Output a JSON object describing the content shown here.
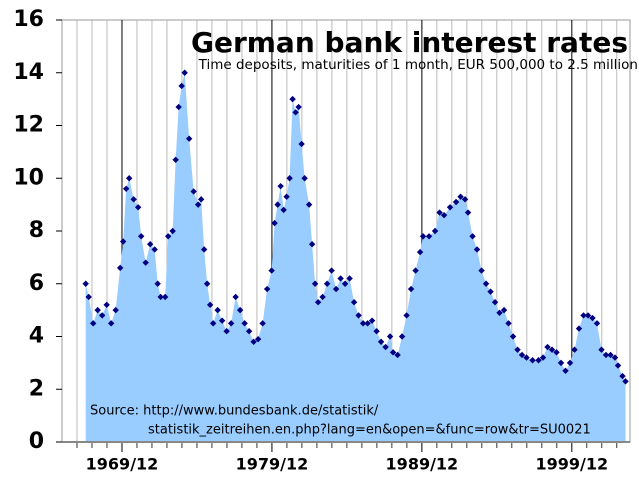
{
  "chart_data": {
    "type": "area",
    "title": "German bank interest rates",
    "subtitle": "Time deposits, maturities of 1 month, EUR 500,000 to 2.5 million",
    "source_line1": "Source: http://www.bundesbank.de/statistik/",
    "source_line2": "statistik_zeitreihen.en.php?lang=en&open=&func=row&tr=SU0021",
    "x": [
      1967.5,
      1967.7,
      1968.0,
      1968.3,
      1968.6,
      1968.9,
      1969.2,
      1969.5,
      1969.8,
      1970.0,
      1970.2,
      1970.4,
      1970.7,
      1971.0,
      1971.2,
      1971.5,
      1971.8,
      1972.1,
      1972.3,
      1972.5,
      1972.8,
      1973.0,
      1973.3,
      1973.5,
      1973.7,
      1973.9,
      1974.1,
      1974.4,
      1974.7,
      1975.0,
      1975.2,
      1975.4,
      1975.6,
      1975.8,
      1976.0,
      1976.3,
      1976.6,
      1976.9,
      1977.2,
      1977.5,
      1977.8,
      1978.1,
      1978.4,
      1978.7,
      1979.0,
      1979.3,
      1979.6,
      1979.9,
      1980.1,
      1980.3,
      1980.5,
      1980.7,
      1980.9,
      1981.1,
      1981.3,
      1981.5,
      1981.7,
      1981.9,
      1982.1,
      1982.4,
      1982.6,
      1982.8,
      1983.0,
      1983.3,
      1983.6,
      1983.9,
      1984.2,
      1984.5,
      1984.8,
      1985.1,
      1985.4,
      1985.7,
      1986.0,
      1986.3,
      1986.6,
      1986.9,
      1987.2,
      1987.5,
      1987.8,
      1988.0,
      1988.3,
      1988.6,
      1988.9,
      1989.2,
      1989.5,
      1989.8,
      1990.0,
      1990.4,
      1990.8,
      1991.1,
      1991.4,
      1991.8,
      1992.2,
      1992.5,
      1992.8,
      1993.0,
      1993.3,
      1993.6,
      1993.9,
      1994.2,
      1994.5,
      1994.8,
      1995.1,
      1995.4,
      1995.7,
      1996.0,
      1996.3,
      1996.6,
      1996.9,
      1997.3,
      1997.7,
      1998.0,
      1998.3,
      1998.6,
      1998.9,
      1999.2,
      1999.5,
      1999.8,
      2000.1,
      2000.4,
      2000.7,
      2001.0,
      2001.3,
      2001.6,
      2001.9,
      2002.2,
      2002.5,
      2002.8,
      2003.0,
      2003.3,
      2003.5
    ],
    "series": [
      {
        "name": "Time deposits 1 month",
        "color": "#99ccff",
        "marker_color": "#000080",
        "values": [
          6.0,
          5.5,
          4.5,
          5.0,
          4.8,
          5.2,
          4.5,
          5.0,
          6.6,
          7.6,
          9.6,
          10.0,
          9.2,
          8.9,
          7.8,
          6.8,
          7.5,
          7.3,
          6.0,
          5.5,
          5.5,
          7.8,
          8.0,
          10.7,
          12.7,
          13.5,
          14.0,
          11.5,
          9.5,
          9.0,
          9.2,
          7.3,
          6.0,
          5.2,
          4.5,
          5.0,
          4.6,
          4.2,
          4.5,
          5.5,
          5.0,
          4.5,
          4.2,
          3.8,
          3.9,
          4.5,
          5.8,
          6.5,
          8.3,
          9.0,
          9.7,
          8.8,
          9.3,
          10.0,
          13.0,
          12.5,
          12.7,
          11.3,
          10.0,
          9.0,
          7.5,
          6.0,
          5.3,
          5.5,
          6.0,
          6.5,
          5.8,
          6.2,
          6.0,
          6.2,
          5.3,
          4.8,
          4.5,
          4.5,
          4.6,
          4.2,
          3.8,
          3.6,
          4.0,
          3.4,
          3.3,
          4.0,
          4.8,
          5.8,
          6.5,
          7.2,
          7.8,
          7.8,
          8.0,
          8.7,
          8.6,
          8.9,
          9.1,
          9.3,
          9.2,
          8.7,
          7.8,
          7.3,
          6.5,
          6.0,
          5.7,
          5.3,
          4.9,
          5.0,
          4.5,
          4.0,
          3.5,
          3.3,
          3.2,
          3.1,
          3.1,
          3.2,
          3.6,
          3.5,
          3.4,
          3.0,
          2.7,
          3.0,
          3.5,
          4.3,
          4.8,
          4.8,
          4.7,
          4.5,
          3.5,
          3.3,
          3.3,
          3.2,
          2.9,
          2.5,
          2.3
        ]
      }
    ],
    "xlim": [
      1965.92,
      2003.8
    ],
    "xticks": [
      {
        "value": 1969.92,
        "label": "1969/12"
      },
      {
        "value": 1979.92,
        "label": "1979/12"
      },
      {
        "value": 1989.92,
        "label": "1989/12"
      },
      {
        "value": 1999.92,
        "label": "1999/12"
      }
    ],
    "minor_xticks": [
      1966.92,
      1967.92,
      1968.92,
      1970.92,
      1971.92,
      1972.92,
      1973.92,
      1974.92,
      1975.92,
      1976.92,
      1977.92,
      1978.92,
      1980.92,
      1981.92,
      1982.92,
      1983.92,
      1984.92,
      1985.92,
      1986.92,
      1987.92,
      1988.92,
      1990.92,
      1991.92,
      1992.92,
      1993.92,
      1994.92,
      1995.92,
      1996.92,
      1997.92,
      1998.92,
      2000.92,
      2001.92,
      2002.92
    ],
    "ylim": [
      0,
      16
    ],
    "yticks": [
      0,
      2,
      4,
      6,
      8,
      10,
      12,
      14,
      16
    ],
    "grid": true
  }
}
